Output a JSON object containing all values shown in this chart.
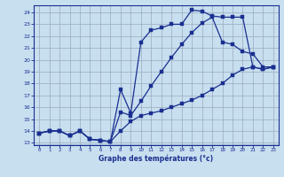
{
  "xlabel": "Graphe des températures (°c)",
  "bg_color": "#c8dff0",
  "grid_color": "#9aaabb",
  "line_color": "#1a2f8f",
  "spine_color": "#1a2f8f",
  "xlim": [
    -0.5,
    23.5
  ],
  "ylim": [
    12.8,
    24.6
  ],
  "xticks": [
    0,
    1,
    2,
    3,
    4,
    5,
    6,
    7,
    8,
    9,
    10,
    11,
    12,
    13,
    14,
    15,
    16,
    17,
    18,
    19,
    20,
    21,
    22,
    23
  ],
  "yticks": [
    13,
    14,
    15,
    16,
    17,
    18,
    19,
    20,
    21,
    22,
    23,
    24
  ],
  "line1_x": [
    0,
    1,
    2,
    3,
    4,
    5,
    6,
    7,
    8,
    9,
    10,
    11,
    12,
    13,
    14,
    15,
    16,
    17,
    18,
    19,
    20,
    21,
    22,
    23
  ],
  "line1_y": [
    13.8,
    14.0,
    14.0,
    13.6,
    14.0,
    13.3,
    13.2,
    13.1,
    17.5,
    15.5,
    21.5,
    22.5,
    22.7,
    23.0,
    23.0,
    24.2,
    24.1,
    23.7,
    23.6,
    23.6,
    23.6,
    19.4,
    19.2,
    19.4
  ],
  "line2_x": [
    0,
    1,
    2,
    3,
    4,
    5,
    6,
    7,
    8,
    9,
    10,
    11,
    12,
    13,
    14,
    15,
    16,
    17,
    18,
    19,
    20,
    21,
    22,
    23
  ],
  "line2_y": [
    13.8,
    14.0,
    14.0,
    13.6,
    14.0,
    13.3,
    13.2,
    13.1,
    14.0,
    14.8,
    15.3,
    15.5,
    15.7,
    16.0,
    16.3,
    16.6,
    17.0,
    17.5,
    18.0,
    18.7,
    19.2,
    19.4,
    19.2,
    19.4
  ],
  "line3_x": [
    0,
    1,
    2,
    3,
    4,
    5,
    6,
    7,
    8,
    9,
    10,
    11,
    12,
    13,
    14,
    15,
    16,
    17,
    18,
    19,
    20,
    21,
    22,
    23
  ],
  "line3_y": [
    13.8,
    14.0,
    14.0,
    13.6,
    14.0,
    13.3,
    13.2,
    13.1,
    15.6,
    15.3,
    16.5,
    17.8,
    19.0,
    20.2,
    21.3,
    22.3,
    23.1,
    23.6,
    21.5,
    21.3,
    20.7,
    20.5,
    19.4,
    19.4
  ]
}
